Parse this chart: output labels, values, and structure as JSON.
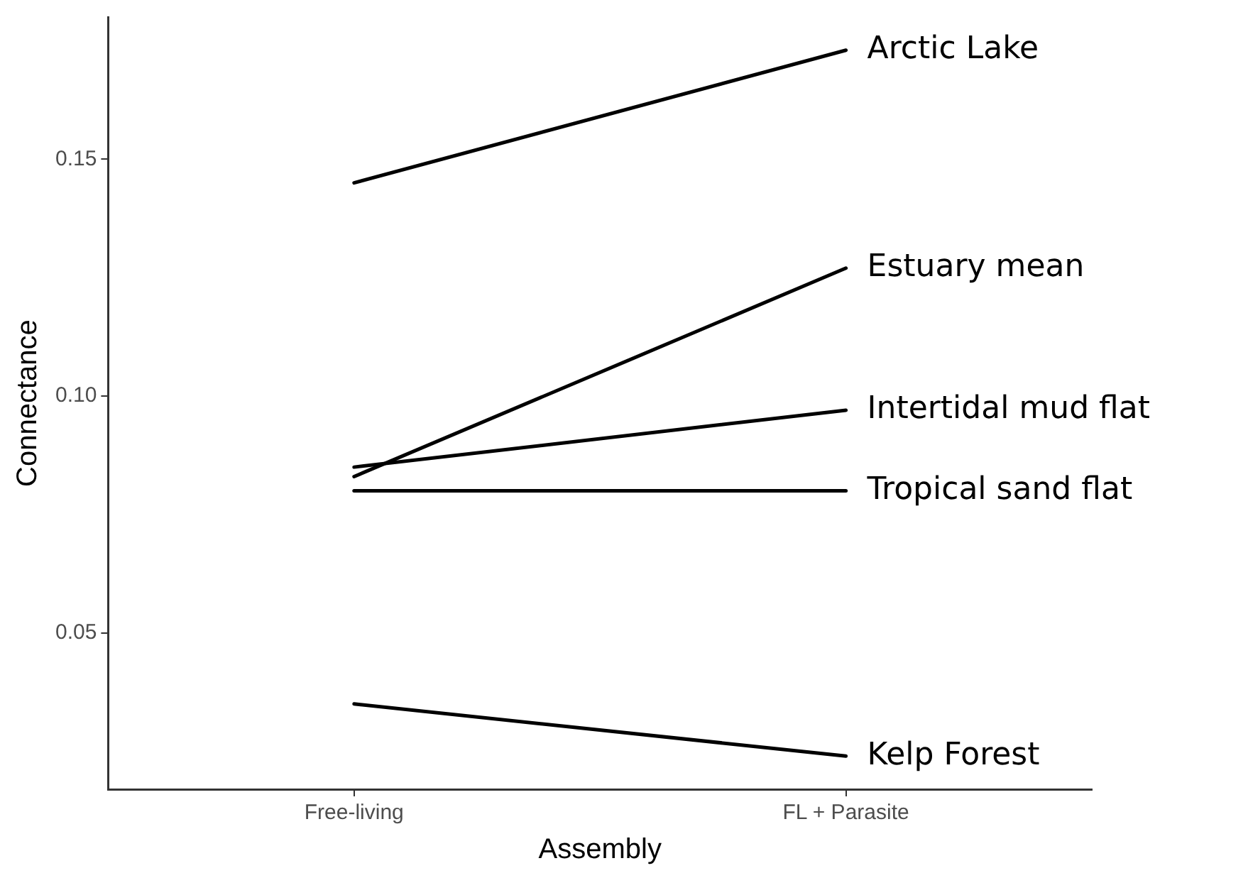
{
  "chart_data": {
    "type": "line",
    "xlabel": "Assembly",
    "ylabel": "Connectance",
    "categories": [
      "Free-living",
      "FL + Parasite"
    ],
    "series": [
      {
        "name": "Arctic Lake",
        "color": "#000000",
        "values": [
          0.145,
          0.173
        ]
      },
      {
        "name": "Estuary mean",
        "color": "#000000",
        "values": [
          0.083,
          0.127
        ]
      },
      {
        "name": "Intertidal mud flat",
        "color": "#000000",
        "values": [
          0.085,
          0.097
        ]
      },
      {
        "name": "Tropical sand flat",
        "color": "#000000",
        "values": [
          0.08,
          0.08
        ]
      },
      {
        "name": "Kelp Forest",
        "color": "#000000",
        "values": [
          0.035,
          0.024
        ]
      }
    ],
    "ylim": [
      0.017,
      0.18
    ],
    "yticks": [
      0.05,
      {
        "value": 0.1,
        "label": "0.10"
      },
      0.15
    ],
    "grid": false,
    "legend": false,
    "marker": "none",
    "line_style": "solid"
  }
}
